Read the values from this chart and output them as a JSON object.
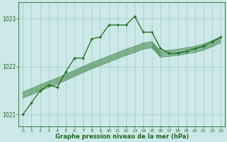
{
  "title": "Graphe pression niveau de la mer (hPa)",
  "bg_color": "#cce8e8",
  "grid_color": "#aacccc",
  "line_color": "#1a6b1a",
  "xlim": [
    -0.5,
    23.5
  ],
  "ylim": [
    1020.75,
    1023.35
  ],
  "yticks": [
    1021,
    1022,
    1023
  ],
  "xticks": [
    0,
    1,
    2,
    3,
    4,
    5,
    6,
    7,
    8,
    9,
    10,
    11,
    12,
    13,
    14,
    15,
    16,
    17,
    18,
    19,
    20,
    21,
    22,
    23
  ],
  "main_x": [
    0,
    1,
    2,
    3,
    4,
    5,
    6,
    7,
    8,
    9,
    10,
    11,
    12,
    13,
    14,
    15,
    16,
    17,
    18,
    19,
    20,
    21,
    22,
    23
  ],
  "main_y": [
    1021.0,
    1021.25,
    1021.5,
    1021.62,
    1021.57,
    1021.9,
    1022.18,
    1022.18,
    1022.58,
    1022.62,
    1022.87,
    1022.87,
    1022.87,
    1023.05,
    1022.72,
    1022.72,
    1022.38,
    1022.28,
    1022.28,
    1022.32,
    1022.38,
    1022.43,
    1022.52,
    1022.62
  ],
  "band_lines": [
    [
      1021.35,
      1021.42,
      1021.5,
      1021.57,
      1021.64,
      1021.72,
      1021.8,
      1021.88,
      1021.96,
      1022.03,
      1022.1,
      1022.17,
      1022.24,
      1022.3,
      1022.37,
      1022.4,
      1022.2,
      1022.22,
      1022.24,
      1022.27,
      1022.3,
      1022.35,
      1022.42,
      1022.5
    ],
    [
      1021.38,
      1021.45,
      1021.53,
      1021.6,
      1021.67,
      1021.75,
      1021.83,
      1021.91,
      1021.99,
      1022.06,
      1022.13,
      1022.2,
      1022.27,
      1022.33,
      1022.4,
      1022.43,
      1022.23,
      1022.25,
      1022.27,
      1022.3,
      1022.33,
      1022.38,
      1022.45,
      1022.53
    ],
    [
      1021.41,
      1021.48,
      1021.56,
      1021.63,
      1021.7,
      1021.78,
      1021.86,
      1021.94,
      1022.02,
      1022.09,
      1022.16,
      1022.23,
      1022.3,
      1022.36,
      1022.43,
      1022.46,
      1022.26,
      1022.28,
      1022.3,
      1022.33,
      1022.36,
      1022.41,
      1022.48,
      1022.56
    ],
    [
      1021.44,
      1021.51,
      1021.59,
      1021.66,
      1021.73,
      1021.81,
      1021.89,
      1021.97,
      1022.05,
      1022.12,
      1022.19,
      1022.26,
      1022.33,
      1022.39,
      1022.46,
      1022.49,
      1022.29,
      1022.31,
      1022.33,
      1022.36,
      1022.39,
      1022.44,
      1022.51,
      1022.59
    ],
    [
      1021.47,
      1021.54,
      1021.62,
      1021.69,
      1021.76,
      1021.84,
      1021.92,
      1022.0,
      1022.08,
      1022.15,
      1022.22,
      1022.29,
      1022.36,
      1022.42,
      1022.49,
      1022.52,
      1022.32,
      1022.34,
      1022.36,
      1022.39,
      1022.42,
      1022.47,
      1022.54,
      1022.62
    ]
  ]
}
